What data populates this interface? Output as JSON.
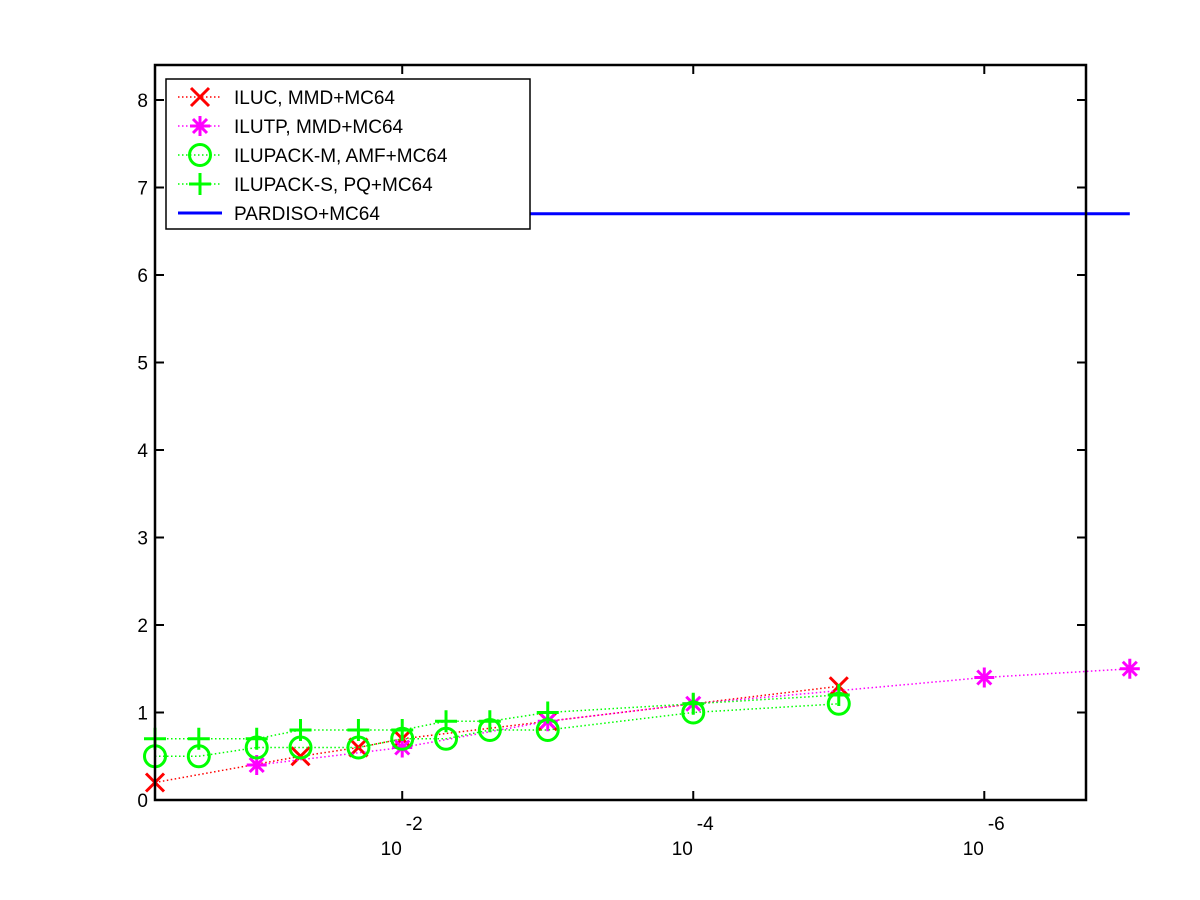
{
  "chart_data": {
    "type": "line",
    "title": "",
    "xlabel": "",
    "ylabel": "",
    "x_scale": "log",
    "x_reversed": true,
    "xlim": [
      0.5,
      2e-07
    ],
    "ylim": [
      0,
      8.4
    ],
    "yticks": [
      0,
      1,
      2,
      3,
      4,
      5,
      6,
      7,
      8
    ],
    "xticks": [
      {
        "value": 0.01,
        "base": "10",
        "exp": "-2"
      },
      {
        "value": 0.0001,
        "base": "10",
        "exp": "-4"
      },
      {
        "value": 1e-06,
        "base": "10",
        "exp": "-6"
      }
    ],
    "legend_position": "top-left",
    "grid": false,
    "series": [
      {
        "name": "ILUC, MMD+MC64",
        "color": "#ff0000",
        "marker": "x",
        "line": "dotted",
        "x": [
          0.5,
          0.05,
          0.02,
          0.01,
          0.001,
          1e-05
        ],
        "y": [
          0.2,
          0.5,
          0.6,
          0.7,
          0.9,
          1.3
        ]
      },
      {
        "name": "ILUTP, MMD+MC64",
        "color": "#ff00ff",
        "marker": "asterisk",
        "line": "dotted",
        "x": [
          0.1,
          0.01,
          0.001,
          0.0001,
          1e-06,
          1e-07
        ],
        "y": [
          0.4,
          0.6,
          0.9,
          1.1,
          1.4,
          1.5
        ]
      },
      {
        "name": "ILUPACK-M, AMF+MC64",
        "color": "#00ff00",
        "marker": "circle",
        "line": "dotted",
        "x": [
          0.5,
          0.25,
          0.1,
          0.05,
          0.02,
          0.01,
          0.005,
          0.0025,
          0.001,
          0.0001,
          1e-05
        ],
        "y": [
          0.5,
          0.5,
          0.6,
          0.6,
          0.6,
          0.7,
          0.7,
          0.8,
          0.8,
          1.0,
          1.1
        ]
      },
      {
        "name": "ILUPACK-S, PQ+MC64",
        "color": "#00ff00",
        "marker": "plus",
        "line": "dotted",
        "x": [
          0.5,
          0.25,
          0.1,
          0.05,
          0.02,
          0.01,
          0.005,
          0.0025,
          0.001,
          0.0001,
          1e-05
        ],
        "y": [
          0.7,
          0.7,
          0.7,
          0.8,
          0.8,
          0.8,
          0.9,
          0.9,
          1.0,
          1.1,
          1.2
        ]
      },
      {
        "name": "PARDISO+MC64",
        "color": "#0000ff",
        "marker": "none",
        "line": "solid",
        "x": [
          0.00316,
          1e-07
        ],
        "y": [
          6.7,
          6.7
        ]
      }
    ]
  }
}
